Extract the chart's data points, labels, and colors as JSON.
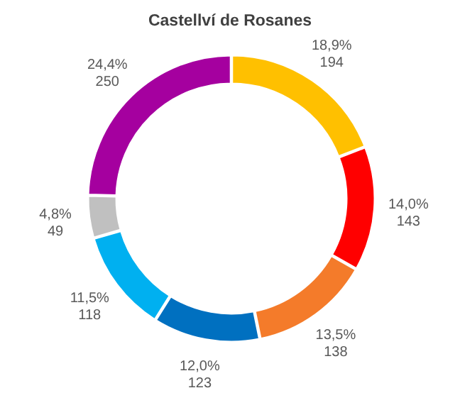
{
  "chart_data": {
    "type": "donut",
    "title": "Castellví de Rosanes",
    "categories": [
      null,
      null,
      null,
      null,
      null,
      null,
      null
    ],
    "values": [
      194,
      143,
      138,
      123,
      118,
      49,
      250
    ],
    "colors": [
      "#ffc000",
      "#ff0000",
      "#f47b2a",
      "#0070c0",
      "#00b0f0",
      "#c0c0c0",
      "#a5009f"
    ],
    "value_labels": [
      "18,9%\n194",
      "14,0%\n143",
      "13,5%\n138",
      "12,0%\n123",
      "11,5%\n118",
      "4,8%\n49",
      "24,4%\n250"
    ]
  }
}
